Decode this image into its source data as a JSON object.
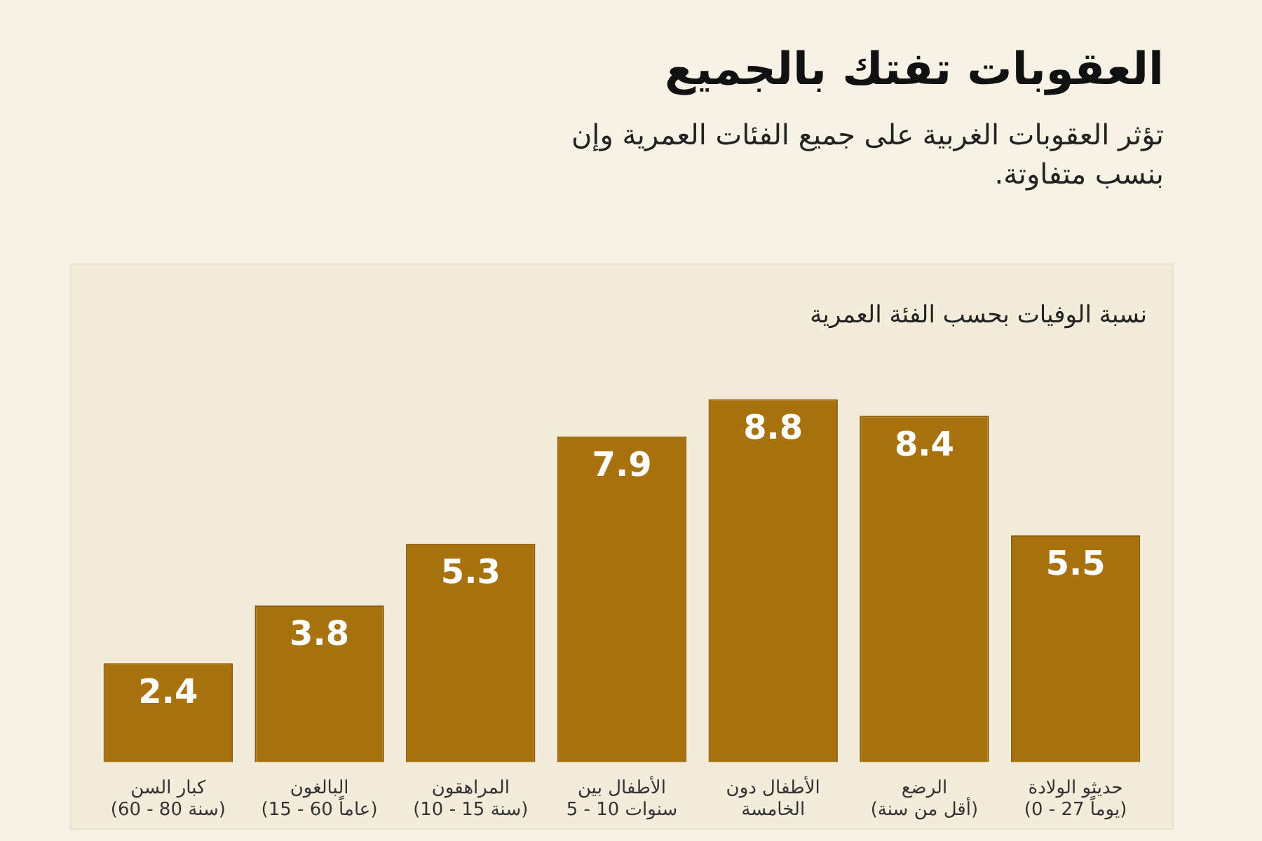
{
  "chart_data": {
    "type": "bar",
    "title": "العقوبات تفتك بالجميع",
    "subtitle": "تؤثر العقوبات الغربية على جميع الفئات العمرية وإن بنسب متفاوتة.",
    "annotations": [
      "نسبة الوفيات بحسب الفئة العمرية"
    ],
    "categories": [
      "كبار السن\n(60 - 80 سنة)",
      "البالغون\n(15 - 60 عاماً)",
      "المراهقون\n(10 - 15 سنة)",
      "الأطفال بين\n5 - 10 سنوات",
      "الأطفال دون\nالخامسة",
      "الرضع\n(أقل من سنة)",
      "حديثو الولادة\n(0 - 27 يوماً)"
    ],
    "values": [
      2.4,
      3.8,
      5.3,
      7.9,
      8.8,
      8.4,
      5.5
    ],
    "color": "#a8720f",
    "data_labels": true,
    "grid": false,
    "legend": false
  }
}
